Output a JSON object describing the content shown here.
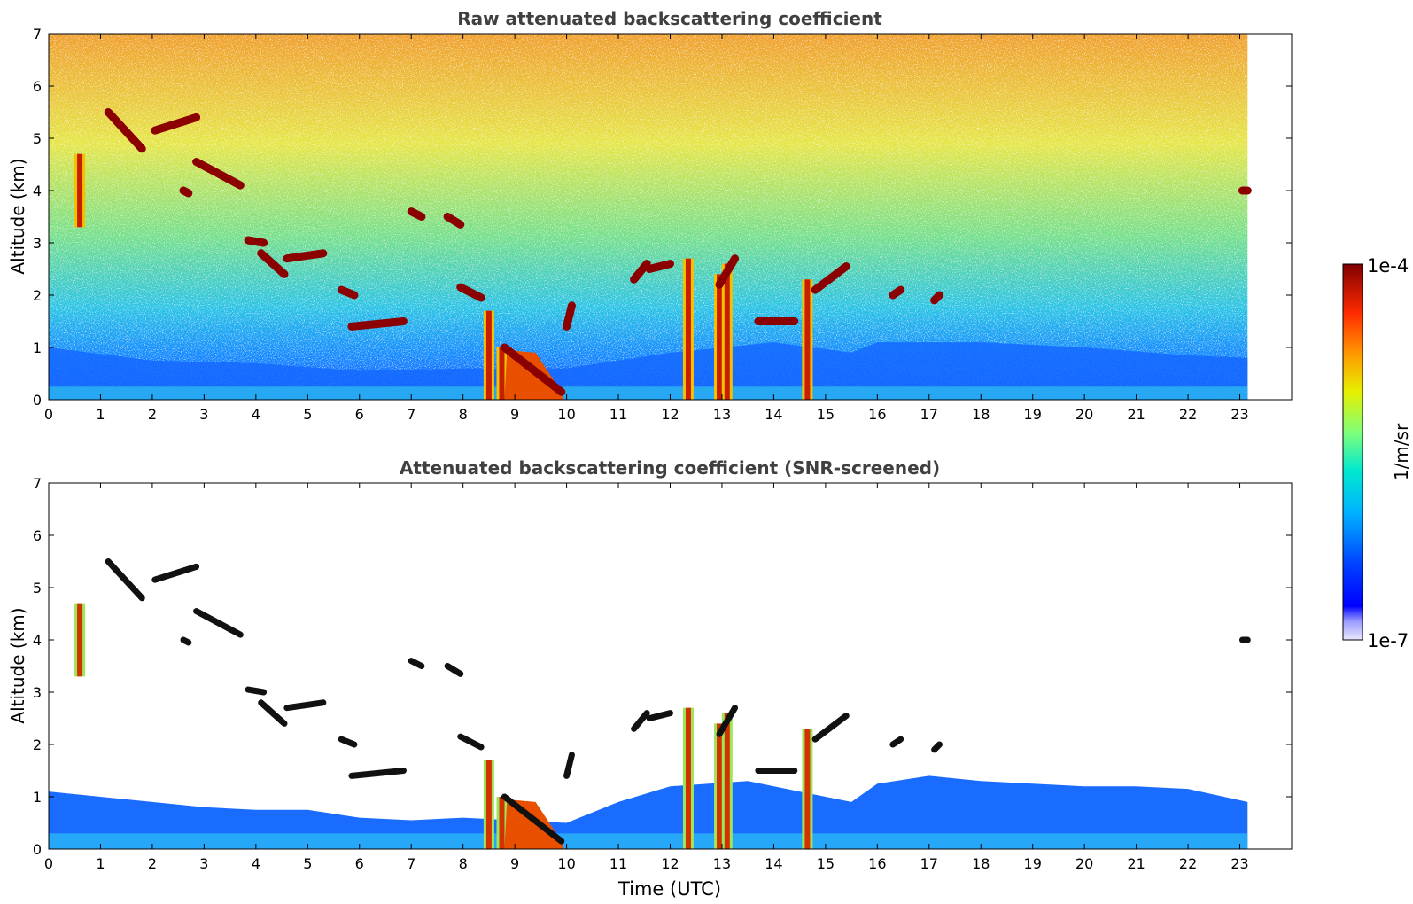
{
  "chart_data": [
    {
      "type": "heatmap",
      "title": "Raw attenuated backscattering coefficient",
      "xlabel": "",
      "ylabel": "Altitude (km)",
      "xlim": [
        0,
        24
      ],
      "ylim": [
        0,
        7
      ],
      "x_ticks": [
        "0",
        "1",
        "2",
        "3",
        "4",
        "5",
        "6",
        "7",
        "8",
        "9",
        "10",
        "11",
        "12",
        "13",
        "14",
        "15",
        "16",
        "17",
        "18",
        "19",
        "20",
        "21",
        "22",
        "23"
      ],
      "y_ticks": [
        "0",
        "1",
        "2",
        "3",
        "4",
        "5",
        "6",
        "7"
      ],
      "data_end_time": 23.15,
      "features": {
        "cloud_layers": [
          {
            "t": [
              1.15,
              1.8
            ],
            "alt": [
              5.5,
              4.8
            ]
          },
          {
            "t": [
              2.05,
              2.85
            ],
            "alt": [
              5.15,
              5.4
            ]
          },
          {
            "t": [
              2.6,
              2.7
            ],
            "alt": [
              4.0,
              3.95
            ]
          },
          {
            "t": [
              2.85,
              3.7
            ],
            "alt": [
              4.55,
              4.1
            ]
          },
          {
            "t": [
              3.85,
              4.15
            ],
            "alt": [
              3.05,
              3.0
            ]
          },
          {
            "t": [
              4.1,
              4.55
            ],
            "alt": [
              2.8,
              2.4
            ]
          },
          {
            "t": [
              4.6,
              5.3
            ],
            "alt": [
              2.7,
              2.8
            ]
          },
          {
            "t": [
              5.65,
              5.9
            ],
            "alt": [
              2.1,
              2.0
            ]
          },
          {
            "t": [
              5.85,
              6.85
            ],
            "alt": [
              1.4,
              1.5
            ]
          },
          {
            "t": [
              7.0,
              7.2
            ],
            "alt": [
              3.6,
              3.5
            ]
          },
          {
            "t": [
              7.7,
              7.95
            ],
            "alt": [
              3.5,
              3.35
            ]
          },
          {
            "t": [
              7.95,
              8.35
            ],
            "alt": [
              2.15,
              1.95
            ]
          },
          {
            "t": [
              8.8,
              9.9
            ],
            "alt": [
              1.0,
              0.15
            ]
          },
          {
            "t": [
              10.0,
              10.1
            ],
            "alt": [
              1.4,
              1.8
            ]
          },
          {
            "t": [
              11.3,
              11.55
            ],
            "alt": [
              2.3,
              2.6
            ]
          },
          {
            "t": [
              11.6,
              12.0
            ],
            "alt": [
              2.5,
              2.6
            ]
          },
          {
            "t": [
              12.95,
              13.25
            ],
            "alt": [
              2.2,
              2.7
            ]
          },
          {
            "t": [
              13.7,
              14.4
            ],
            "alt": [
              1.5,
              1.5
            ]
          },
          {
            "t": [
              14.8,
              15.4
            ],
            "alt": [
              2.1,
              2.55
            ]
          },
          {
            "t": [
              16.3,
              16.45
            ],
            "alt": [
              2.0,
              2.1
            ]
          },
          {
            "t": [
              17.1,
              17.2
            ],
            "alt": [
              1.9,
              2.0
            ]
          },
          {
            "t": [
              23.05,
              23.15
            ],
            "alt": [
              4.0,
              4.0
            ]
          }
        ],
        "precip_columns": [
          {
            "t": 0.6,
            "alt": [
              3.3,
              4.7
            ]
          },
          {
            "t": 8.5,
            "alt": [
              0,
              1.7
            ]
          },
          {
            "t": 8.75,
            "alt": [
              0,
              1.0
            ]
          },
          {
            "t": 12.35,
            "alt": [
              0,
              2.7
            ]
          },
          {
            "t": 12.95,
            "alt": [
              0,
              2.4
            ]
          },
          {
            "t": 13.1,
            "alt": [
              0,
              2.6
            ]
          },
          {
            "t": 14.65,
            "alt": [
              0,
              2.3
            ]
          }
        ],
        "boundary_layer_top": [
          [
            0,
            1.0
          ],
          [
            2,
            0.75
          ],
          [
            4,
            0.7
          ],
          [
            6,
            0.55
          ],
          [
            8,
            0.6
          ],
          [
            10,
            0.6
          ],
          [
            12,
            0.9
          ],
          [
            14,
            1.1
          ],
          [
            15.5,
            0.9
          ],
          [
            16,
            1.1
          ],
          [
            18,
            1.1
          ],
          [
            20,
            1.0
          ],
          [
            22,
            0.85
          ],
          [
            23.15,
            0.8
          ]
        ]
      }
    },
    {
      "type": "heatmap",
      "title": "Attenuated backscattering coefficient (SNR-screened)",
      "xlabel": "Time (UTC)",
      "ylabel": "Altitude (km)",
      "xlim": [
        0,
        24
      ],
      "ylim": [
        0,
        7
      ],
      "x_ticks": [
        "0",
        "1",
        "2",
        "3",
        "4",
        "5",
        "6",
        "7",
        "8",
        "9",
        "10",
        "11",
        "12",
        "13",
        "14",
        "15",
        "16",
        "17",
        "18",
        "19",
        "20",
        "21",
        "22",
        "23"
      ],
      "y_ticks": [
        "0",
        "1",
        "2",
        "3",
        "4",
        "5",
        "6",
        "7"
      ],
      "data_end_time": 23.15,
      "screened_layer_top": [
        [
          0,
          1.1
        ],
        [
          1,
          1.0
        ],
        [
          2,
          0.9
        ],
        [
          3,
          0.8
        ],
        [
          4,
          0.75
        ],
        [
          5,
          0.75
        ],
        [
          6,
          0.6
        ],
        [
          7,
          0.55
        ],
        [
          8,
          0.6
        ],
        [
          10,
          0.5
        ],
        [
          11,
          0.9
        ],
        [
          12,
          1.2
        ],
        [
          13.5,
          1.3
        ],
        [
          15.5,
          0.9
        ],
        [
          16,
          1.25
        ],
        [
          17,
          1.4
        ],
        [
          18,
          1.3
        ],
        [
          19,
          1.25
        ],
        [
          20,
          1.2
        ],
        [
          21,
          1.2
        ],
        [
          22,
          1.15
        ],
        [
          23.15,
          0.9
        ]
      ]
    }
  ],
  "colorbar": {
    "label": "1/m/sr",
    "max_label": "1e-4",
    "min_label": "1e-7",
    "scale": "log",
    "range": [
      1e-07,
      0.0001
    ],
    "colormap": "jet"
  },
  "colors": {
    "title": "#404040",
    "axis": "#000000"
  }
}
